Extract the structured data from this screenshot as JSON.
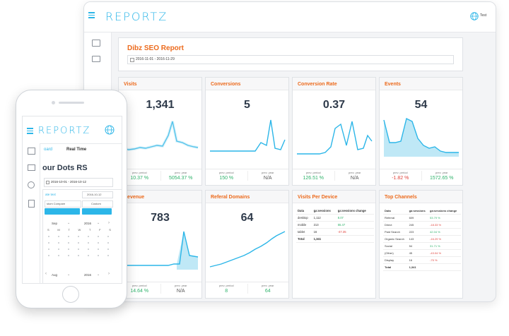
{
  "desktop": {
    "logo": "REPORTZ",
    "user_label": "Test",
    "report_title": "Dibz SEO Report",
    "date_range": "2016-11-01 - 2016-11-29"
  },
  "cards": {
    "visits": {
      "title": "Visits",
      "value": "1,341",
      "prev_label": "prev. period",
      "prev_value": "10.37 %",
      "year_label": "prev. year",
      "year_value": "5054.37 %"
    },
    "conversions": {
      "title": "Conversions",
      "value": "5",
      "prev_label": "prev. period",
      "prev_value": "150 %",
      "year_label": "prev. year",
      "year_value": "N/A"
    },
    "conversion_rate": {
      "title": "Conversion Rate",
      "value": "0.37",
      "prev_label": "prev. period",
      "prev_value": "126.51 %",
      "year_label": "prev. year",
      "year_value": "N/A"
    },
    "events": {
      "title": "Events",
      "value": "54",
      "prev_label": "prev. period",
      "prev_value": "-1.82 %",
      "year_label": "prev. year",
      "year_value": "1572.65 %"
    },
    "revenue": {
      "title": "Revenue",
      "value": "783",
      "prev_label": "prev. period",
      "prev_value": "14.64 %",
      "year_label": "prev. year",
      "year_value": "N/A"
    },
    "referal_domains": {
      "title": "Referal Domains",
      "value": "64",
      "prev_label": "prev. period",
      "prev_value": "8",
      "year_label": "prev. year",
      "year_value": "64"
    }
  },
  "visits_per_device": {
    "title": "Visits Per Device",
    "headers": [
      "Data",
      "ga:sessions",
      "ga:sessions change"
    ],
    "rows": [
      {
        "data": "desktop",
        "sessions": "1,112",
        "change": "8.07"
      },
      {
        "data": "mobile",
        "sessions": "213",
        "change": "55.47"
      },
      {
        "data": "tablet",
        "sessions": "16",
        "change": "-47.35"
      },
      {
        "data": "Total",
        "sessions": "1,341",
        "change": ""
      }
    ]
  },
  "top_channels": {
    "title": "Top Channels",
    "headers": [
      "Data",
      "ga:sessions",
      "ga:sessions change"
    ],
    "rows": [
      {
        "data": "Referral",
        "sessions": "609",
        "change": "53.79 %"
      },
      {
        "data": "Direct",
        "sessions": "245",
        "change": "-18.33 %"
      },
      {
        "data": "Paid Search",
        "sessions": "223",
        "change": "42.04 %"
      },
      {
        "data": "Organic Search",
        "sessions": "143",
        "change": "-16.29 %"
      },
      {
        "data": "Social",
        "sessions": "54",
        "change": "31.71 %"
      },
      {
        "data": "(Other)",
        "sessions": "45",
        "change": "-43.04 %"
      },
      {
        "data": "Display",
        "sessions": "16",
        "change": "-75 %"
      },
      {
        "data": "Total",
        "sessions": "1,341",
        "change": ""
      }
    ]
  },
  "phone": {
    "logo": "REPORTZ",
    "tab_dashboard": "oard",
    "tab_realtime": "Real Time",
    "heading": "our Dots RS",
    "date_range": "2016-10-01 - 2016-10-12",
    "compare_label": "ate text",
    "compare_date": "2016-10-12",
    "custom_compare": "stom Compare",
    "custom": "Custom",
    "cancel_label": "CANCEL",
    "set_label": "SET",
    "month1": "Sep",
    "year1": "2016",
    "weekdays": [
      "S",
      "M",
      "T",
      "W",
      "T",
      "F",
      "S"
    ],
    "month2": "Aug",
    "year2": "2016"
  },
  "colors": {
    "accent": "#2cb6e8",
    "title_orange": "#ec6a1c",
    "positive": "#2fb36b",
    "negative": "#e0433c"
  },
  "icons": [
    "menu-icon",
    "globe-icon",
    "layers-icon",
    "folder-icon",
    "settings-icon",
    "document-icon",
    "calendar-icon"
  ]
}
